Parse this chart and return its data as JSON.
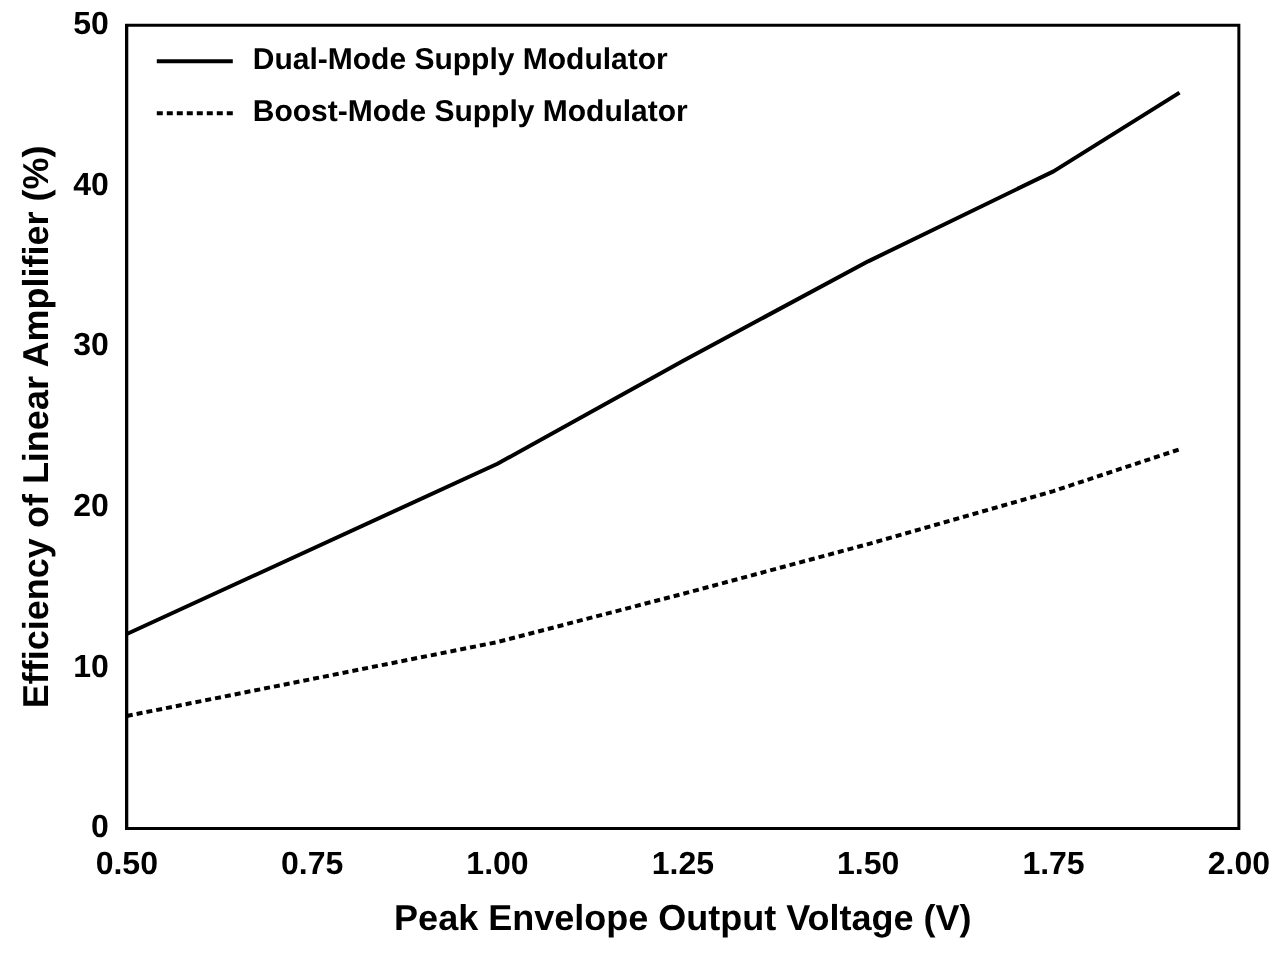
{
  "chart_data": {
    "type": "line",
    "xlabel": "Peak Envelope Output Voltage (V)",
    "ylabel": "Efficiency of Linear Amplifier (%)",
    "xlim": [
      0.5,
      2.0
    ],
    "xticks": [
      {
        "value": 0.5,
        "label": "0.50"
      },
      {
        "value": 0.75,
        "label": "0.75"
      },
      {
        "value": 1.0,
        "label": "1.00"
      },
      {
        "value": 1.25,
        "label": "1.25"
      },
      {
        "value": 1.5,
        "label": "1.50"
      },
      {
        "value": 1.75,
        "label": "1.75"
      },
      {
        "value": 2.0,
        "label": "2.00"
      }
    ],
    "ylim": [
      0,
      50
    ],
    "yticks": [
      0,
      10,
      20,
      30,
      40,
      50
    ],
    "grid": false,
    "legend": "top left",
    "marker": "none",
    "series": [
      {
        "name": "Dual-Mode Supply Modulator",
        "color": "#000000",
        "line_style": "solid",
        "x": [
          0.5,
          1.0,
          1.25,
          1.5,
          1.75,
          1.92
        ],
        "values": [
          12.1,
          22.7,
          29.1,
          35.3,
          40.9,
          45.8
        ]
      },
      {
        "name": "Boost-Mode Supply Modulator",
        "color": "#000000",
        "line_style": "dotted",
        "x": [
          0.5,
          0.75,
          1.0,
          1.25,
          1.5,
          1.75,
          1.92
        ],
        "values": [
          7.0,
          9.3,
          11.6,
          14.6,
          17.7,
          21.0,
          23.6
        ]
      }
    ]
  }
}
